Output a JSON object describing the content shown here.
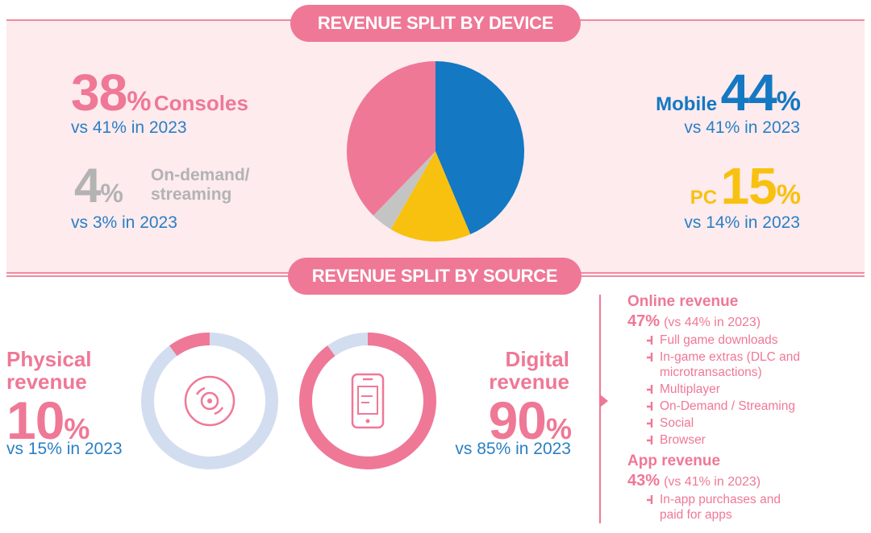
{
  "device_section": {
    "title": "REVENUE SPLIT BY DEVICE",
    "consoles": {
      "pct": "38",
      "label": "Consoles",
      "vs": "vs 41% in 2023"
    },
    "ondemand": {
      "pct": "4",
      "label_line1": "On-demand/",
      "label_line2": "streaming",
      "vs": "vs 3% in 2023"
    },
    "mobile": {
      "pct": "44",
      "label": "Mobile",
      "vs": "vs 41% in 2023"
    },
    "pc": {
      "pct": "15",
      "label": "PC",
      "vs": "vs 14% in 2023"
    }
  },
  "source_section": {
    "title": "REVENUE SPLIT BY SOURCE",
    "physical": {
      "label_line1": "Physical",
      "label_line2": "revenue",
      "pct": "10",
      "vs": "vs 15% in 2023"
    },
    "digital": {
      "label_line1": "Digital",
      "label_line2": "revenue",
      "pct": "90",
      "vs": "vs 85% in 2023"
    },
    "online": {
      "title": "Online revenue",
      "pct": "47",
      "vs": "(vs 44% in 2023)",
      "items": [
        "Full game downloads",
        "In-game extras (DLC and microtransactions)",
        "Multiplayer",
        "On-Demand / Streaming",
        "Social",
        "Browser"
      ]
    },
    "app": {
      "title": "App revenue",
      "pct": "43",
      "vs": "(vs 41% in 2023)",
      "items": [
        "In-app purchases and paid for apps"
      ]
    }
  },
  "percent_sign": "%",
  "colors": {
    "pink": "#ef7896",
    "blue": "#1478c2",
    "yellow": "#f8c10f",
    "gray": "#c4c4c4",
    "light_blue": "#d3ddf0"
  },
  "chart_data": [
    {
      "type": "pie",
      "title": "REVENUE SPLIT BY DEVICE",
      "categories": [
        "Mobile",
        "PC",
        "On-demand/streaming",
        "Consoles"
      ],
      "values": [
        44,
        15,
        4,
        38
      ],
      "colors": [
        "#1478c2",
        "#f8c10f",
        "#c4c4c4",
        "#ef7896"
      ]
    },
    {
      "type": "pie",
      "title": "REVENUE SPLIT BY SOURCE",
      "categories": [
        "Physical revenue",
        "Digital revenue"
      ],
      "values": [
        10,
        90
      ],
      "colors": [
        "#ef7896",
        "#ef7896"
      ]
    }
  ]
}
